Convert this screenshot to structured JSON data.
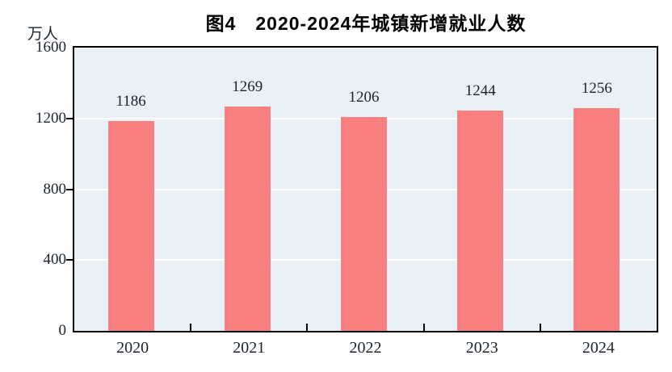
{
  "chart_data": {
    "type": "bar",
    "title": "图4　2020-2024年城镇新增就业人数",
    "xlabel": "",
    "ylabel": "万人",
    "categories": [
      "2020",
      "2021",
      "2022",
      "2023",
      "2024"
    ],
    "values": [
      1186,
      1269,
      1206,
      1244,
      1256
    ],
    "ylim": [
      0,
      1600
    ],
    "yticks": [
      0,
      400,
      800,
      1200,
      1600
    ],
    "legend_position": "none",
    "grid": "horizontal-white",
    "colors": {
      "bar": "#fa8080",
      "plot_background": "#e9f1f7",
      "plot_border": "#000000",
      "gridline": "#ffffff",
      "text": "#1c2430",
      "title_text": "#000000"
    }
  }
}
